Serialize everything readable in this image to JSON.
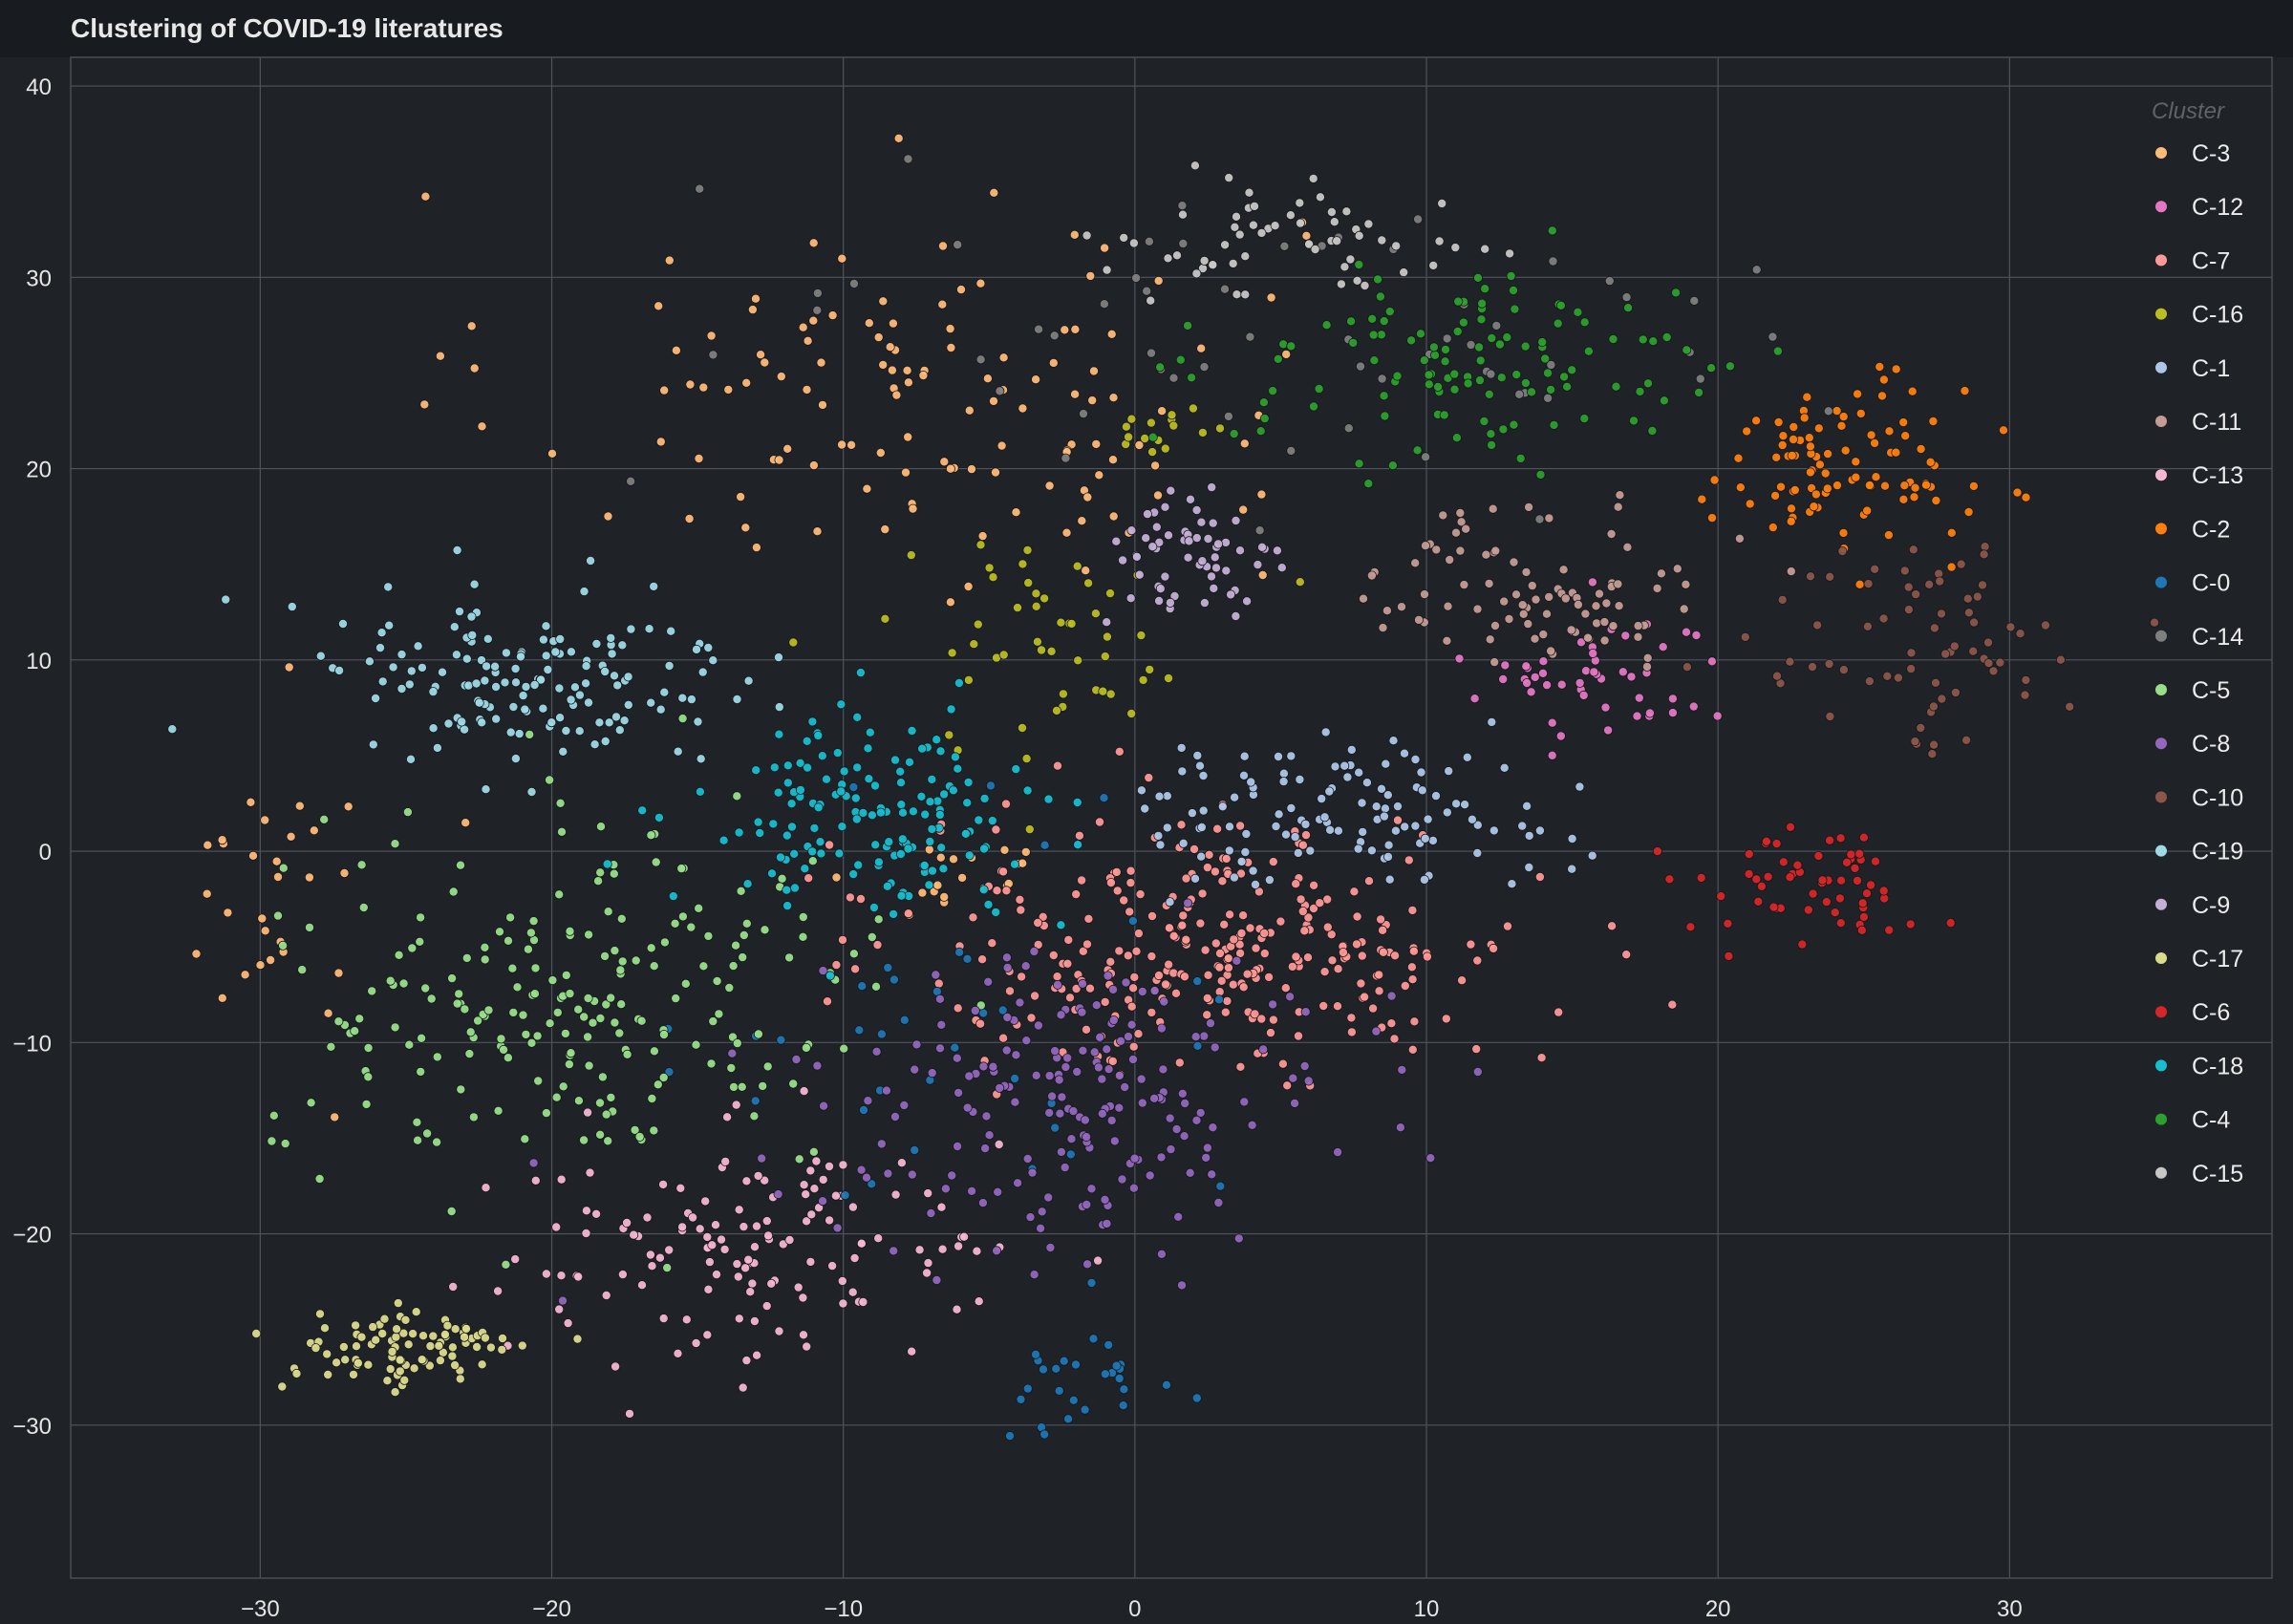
{
  "chart_data": {
    "type": "scatter",
    "title": "Clustering of COVID-19 literatures",
    "xlabel": "",
    "ylabel": "",
    "xlim": [
      -36.5,
      39
    ],
    "ylim": [
      -38,
      41.5
    ],
    "xticks": [
      -30,
      -20,
      -10,
      0,
      10,
      20,
      30
    ],
    "yticks": [
      -30,
      -20,
      -10,
      0,
      10,
      20,
      30,
      40
    ],
    "xtick_labels": [
      "−30",
      "−20",
      "−10",
      "0",
      "10",
      "20",
      "30"
    ],
    "ytick_labels": [
      "−30",
      "−20",
      "−10",
      "0",
      "10",
      "20",
      "30",
      "40"
    ],
    "grid": true,
    "legend": {
      "title": "Cluster",
      "position": "top-right"
    },
    "background": "#1f2227",
    "series": [
      {
        "name": "C-3",
        "color": "#ffbb78",
        "clusters": [
          {
            "center": [
              -8,
              24
            ],
            "spread": [
              9,
              7
            ],
            "count": 130
          },
          {
            "center": [
              -29,
              -2
            ],
            "spread": [
              2.5,
              6
            ],
            "count": 30
          },
          {
            "center": [
              -6,
              -1
            ],
            "spread": [
              2,
              1.2
            ],
            "count": 20
          }
        ]
      },
      {
        "name": "C-12",
        "color": "#e377c2",
        "clusters": [
          {
            "center": [
              16,
              9
            ],
            "spread": [
              3,
              2.5
            ],
            "count": 50
          }
        ]
      },
      {
        "name": "C-7",
        "color": "#ff9896",
        "clusters": [
          {
            "center": [
              3,
              -5
            ],
            "spread": [
              7,
              4.5
            ],
            "count": 300
          }
        ]
      },
      {
        "name": "C-16",
        "color": "#bcbd22",
        "clusters": [
          {
            "center": [
              -3,
              11
            ],
            "spread": [
              4,
              4
            ],
            "count": 50
          },
          {
            "center": [
              1,
              22
            ],
            "spread": [
              1.5,
              0.8
            ],
            "count": 15
          }
        ]
      },
      {
        "name": "C-1",
        "color": "#aec7e8",
        "clusters": [
          {
            "center": [
              7,
              2
            ],
            "spread": [
              5,
              2.5
            ],
            "count": 120
          }
        ]
      },
      {
        "name": "C-11",
        "color": "#c49c94",
        "clusters": [
          {
            "center": [
              14,
              14
            ],
            "spread": [
              4,
              3
            ],
            "count": 90
          }
        ]
      },
      {
        "name": "C-13",
        "color": "#f7b6d2",
        "clusters": [
          {
            "center": [
              -13,
              -21
            ],
            "spread": [
              6,
              4
            ],
            "count": 140
          }
        ]
      },
      {
        "name": "C-2",
        "color": "#ff7f0e",
        "clusters": [
          {
            "center": [
              24,
              20
            ],
            "spread": [
              3,
              3
            ],
            "count": 100
          }
        ]
      },
      {
        "name": "C-0",
        "color": "#1f77b4",
        "clusters": [
          {
            "center": [
              -1,
              -28
            ],
            "spread": [
              2,
              1.5
            ],
            "count": 25
          },
          {
            "center": [
              -6,
              -10
            ],
            "spread": [
              6,
              8
            ],
            "count": 40
          }
        ]
      },
      {
        "name": "C-14",
        "color": "#7f7f7f",
        "clusters": [
          {
            "center": [
              5,
              27
            ],
            "spread": [
              12,
              6
            ],
            "count": 60
          }
        ]
      },
      {
        "name": "C-5",
        "color": "#98df8a",
        "clusters": [
          {
            "center": [
              -19,
              -8
            ],
            "spread": [
              7,
              6
            ],
            "count": 220
          }
        ]
      },
      {
        "name": "C-8",
        "color": "#9467bd",
        "clusters": [
          {
            "center": [
              -2,
              -13
            ],
            "spread": [
              6,
              5
            ],
            "count": 200
          }
        ]
      },
      {
        "name": "C-10",
        "color": "#8c564b",
        "clusters": [
          {
            "center": [
              27,
              11
            ],
            "spread": [
              4,
              4
            ],
            "count": 70
          }
        ]
      },
      {
        "name": "C-19",
        "color": "#9edae5",
        "clusters": [
          {
            "center": [
              -21,
              9
            ],
            "spread": [
              5,
              3.5
            ],
            "count": 150
          }
        ]
      },
      {
        "name": "C-9",
        "color": "#c5b0d5",
        "clusters": [
          {
            "center": [
              2,
              15
            ],
            "spread": [
              2,
              2.5
            ],
            "count": 60
          }
        ]
      },
      {
        "name": "C-17",
        "color": "#dbdb8d",
        "clusters": [
          {
            "center": [
              -25,
              -26
            ],
            "spread": [
              3,
              1.5
            ],
            "count": 90
          }
        ]
      },
      {
        "name": "C-6",
        "color": "#d62728",
        "clusters": [
          {
            "center": [
              23,
              -2
            ],
            "spread": [
              2.5,
              2
            ],
            "count": 60
          }
        ]
      },
      {
        "name": "C-18",
        "color": "#17becf",
        "clusters": [
          {
            "center": [
              -9,
              2
            ],
            "spread": [
              4,
              3.5
            ],
            "count": 150
          }
        ]
      },
      {
        "name": "C-4",
        "color": "#2ca02c",
        "clusters": [
          {
            "center": [
              12,
              25
            ],
            "spread": [
              6,
              3.5
            ],
            "count": 120
          }
        ]
      },
      {
        "name": "C-15",
        "color": "#c7c7c7",
        "clusters": [
          {
            "center": [
              6,
              32
            ],
            "spread": [
              4,
              2
            ],
            "count": 60
          }
        ]
      }
    ]
  }
}
